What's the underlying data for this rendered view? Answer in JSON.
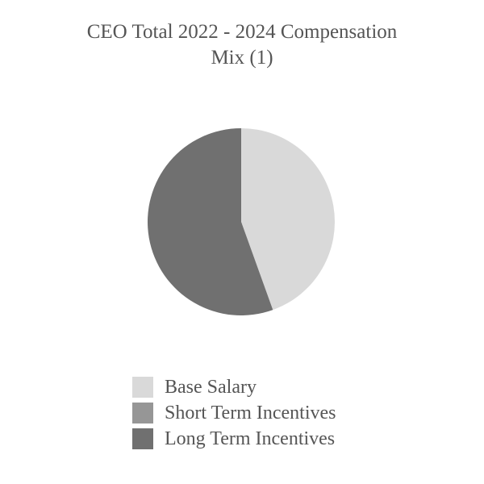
{
  "chart_data": {
    "type": "pie",
    "title_lines": [
      "CEO Total 2022 - 2024 Compensation",
      "Mix (1)"
    ],
    "title": "CEO Total 2022 - 2024 Compensation Mix (1)",
    "categories": [
      "Base Salary",
      "Short Term Incentives",
      "Long Term Incentives"
    ],
    "values": [
      44.5,
      0,
      55.5
    ],
    "unit": "%",
    "colors": [
      "#d9d9d9",
      "#969696",
      "#707070"
    ],
    "legend_position": "bottom",
    "start_angle": "12 o'clock",
    "direction": "clockwise"
  }
}
